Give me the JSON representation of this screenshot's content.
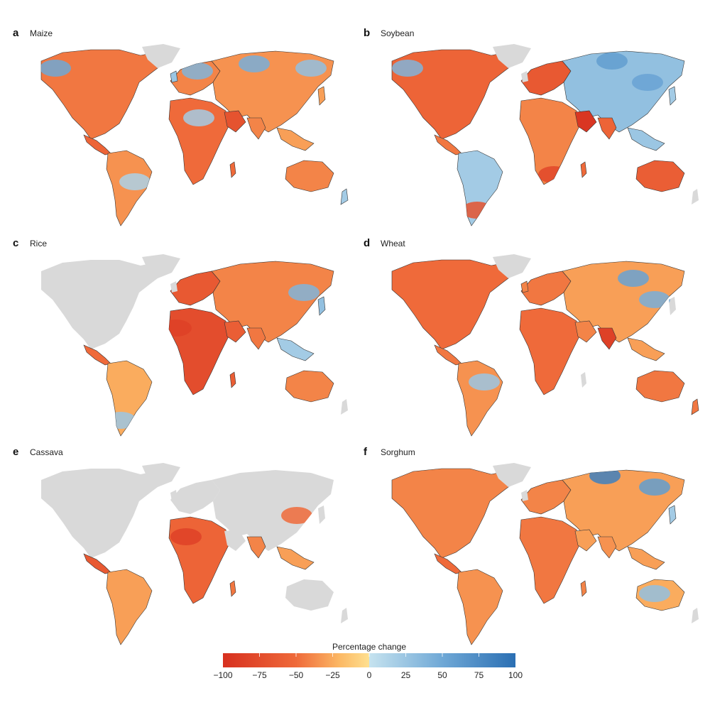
{
  "panels": [
    {
      "letter": "a",
      "crop": "Maize"
    },
    {
      "letter": "b",
      "crop": "Soybean"
    },
    {
      "letter": "c",
      "crop": "Rice"
    },
    {
      "letter": "d",
      "crop": "Wheat"
    },
    {
      "letter": "e",
      "crop": "Cassava"
    },
    {
      "letter": "f",
      "crop": "Sorghum"
    }
  ],
  "legend": {
    "title": "Percentage change",
    "ticks": [
      "−100",
      "−75",
      "−50",
      "−25",
      "0",
      "25",
      "50",
      "75",
      "100"
    ],
    "range": [
      -100,
      100
    ],
    "colors": {
      "neg_strong": "#d7301f",
      "neg_mid": "#ef6a3a",
      "neg_light": "#fcb965",
      "zero_neg": "#fee090",
      "zero_pos": "#c6e3ef",
      "pos_mid": "#6fa8d6",
      "pos_strong": "#2b6fb3",
      "land": "#d9d9d9"
    }
  }
}
